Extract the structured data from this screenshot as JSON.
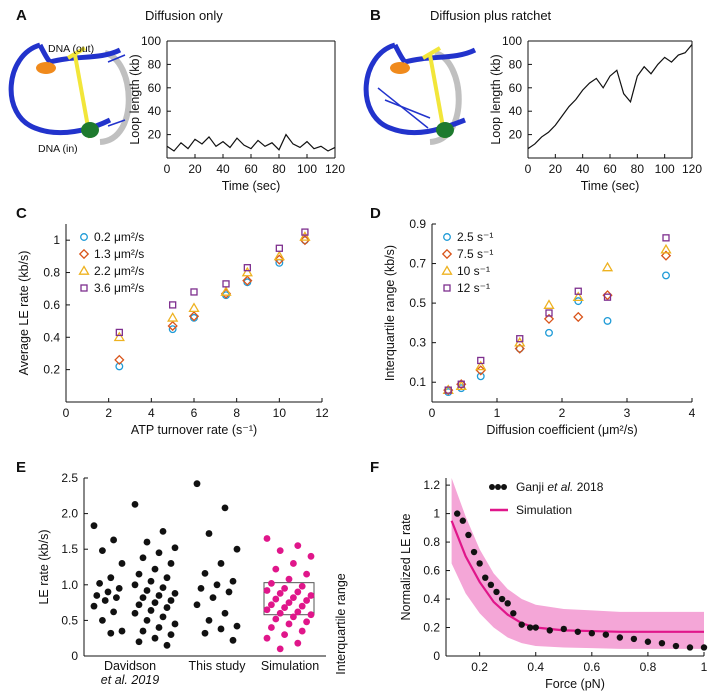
{
  "panels": {
    "A": {
      "label": "A",
      "title": "Diffusion only",
      "dna_out": "DNA (out)",
      "dna_in": "DNA (in)"
    },
    "B": {
      "label": "B",
      "title": "Diffusion plus ratchet"
    },
    "C": {
      "label": "C"
    },
    "D": {
      "label": "D"
    },
    "E": {
      "label": "E",
      "box_note": "Interquartile range"
    },
    "F": {
      "label": "F"
    }
  },
  "colors": {
    "black": "#111111",
    "blue": "#2233cc",
    "yellow": "#f2e63a",
    "orange": "#f08a1c",
    "green": "#1e7a2e",
    "gray": "#c0c0c0",
    "magenta": "#e0168a",
    "pink_band": "#f4a6d7",
    "c_blue": "#1f9bd7",
    "c_orange": "#d9541a",
    "c_yellow": "#eeb220",
    "c_purple": "#7e2f8e"
  },
  "chart_data": [
    {
      "id": "A",
      "type": "line",
      "xlabel": "Time (sec)",
      "ylabel": "Loop length (kb)",
      "xlim": [
        0,
        120
      ],
      "ylim": [
        0,
        100
      ],
      "xticks": [
        0,
        20,
        40,
        60,
        80,
        100,
        120
      ],
      "yticks": [
        20,
        40,
        60,
        80,
        100
      ],
      "x": [
        0,
        5,
        10,
        15,
        20,
        25,
        30,
        35,
        40,
        45,
        50,
        55,
        60,
        65,
        70,
        75,
        80,
        85,
        90,
        95,
        100,
        105,
        110,
        115,
        120
      ],
      "y": [
        10,
        6,
        13,
        8,
        16,
        12,
        18,
        10,
        14,
        9,
        17,
        11,
        8,
        15,
        10,
        13,
        7,
        20,
        12,
        9,
        14,
        8,
        10,
        6,
        9
      ]
    },
    {
      "id": "B",
      "type": "line",
      "xlabel": "Time (sec)",
      "ylabel": "Loop length (kb)",
      "xlim": [
        0,
        120
      ],
      "ylim": [
        0,
        100
      ],
      "xticks": [
        0,
        20,
        40,
        60,
        80,
        100,
        120
      ],
      "yticks": [
        20,
        40,
        60,
        80,
        100
      ],
      "x": [
        0,
        5,
        10,
        15,
        20,
        25,
        30,
        35,
        40,
        45,
        50,
        55,
        60,
        65,
        70,
        75,
        80,
        85,
        90,
        95,
        100,
        105,
        110,
        115,
        120
      ],
      "y": [
        8,
        12,
        18,
        22,
        28,
        36,
        44,
        50,
        58,
        64,
        68,
        60,
        70,
        75,
        55,
        48,
        70,
        78,
        72,
        80,
        86,
        82,
        88,
        90,
        97
      ]
    },
    {
      "id": "C",
      "type": "scatter",
      "xlabel": "ATP turnover rate (s⁻¹)",
      "ylabel": "Average LE rate (kb/s)",
      "xlim": [
        0,
        12
      ],
      "ylim": [
        0,
        1.1
      ],
      "xticks": [
        0,
        2,
        4,
        6,
        8,
        10,
        12
      ],
      "yticks": [
        0.2,
        0.4,
        0.6,
        0.8,
        1.0
      ],
      "x": [
        2.5,
        5,
        6,
        7.5,
        8.5,
        10,
        11.2
      ],
      "series": [
        {
          "name": "0.2 μm²/s",
          "marker": "circle",
          "color": "#1f9bd7",
          "values": [
            0.22,
            0.45,
            0.52,
            0.66,
            0.74,
            0.86,
            1.0
          ]
        },
        {
          "name": "1.3 μm²/s",
          "marker": "diamond",
          "color": "#d9541a",
          "values": [
            0.26,
            0.47,
            0.53,
            0.67,
            0.75,
            0.88,
            1.0
          ]
        },
        {
          "name": "2.2 μm²/s",
          "marker": "triangle",
          "color": "#eeb220",
          "values": [
            0.4,
            0.52,
            0.58,
            0.68,
            0.8,
            0.9,
            1.02
          ]
        },
        {
          "name": "3.6 μm²/s",
          "marker": "square",
          "color": "#7e2f8e",
          "values": [
            0.43,
            0.6,
            0.68,
            0.73,
            0.83,
            0.95,
            1.05
          ]
        }
      ]
    },
    {
      "id": "D",
      "type": "scatter",
      "xlabel": "Diffusion coefficient (μm²/s)",
      "ylabel": "Interquartile range (kb/s)",
      "xlim": [
        0,
        4
      ],
      "ylim": [
        0,
        0.9
      ],
      "xticks": [
        0,
        1,
        2,
        3,
        4
      ],
      "yticks": [
        0.1,
        0.3,
        0.5,
        0.7,
        0.9
      ],
      "x": [
        0.25,
        0.45,
        0.75,
        1.35,
        1.8,
        2.25,
        2.7,
        3.6
      ],
      "series": [
        {
          "name": "2.5 s⁻¹",
          "marker": "circle",
          "color": "#1f9bd7",
          "values": [
            0.05,
            0.07,
            0.13,
            0.27,
            0.35,
            0.51,
            0.41,
            0.64
          ]
        },
        {
          "name": "7.5 s⁻¹",
          "marker": "diamond",
          "color": "#d9541a",
          "values": [
            0.06,
            0.09,
            0.16,
            0.27,
            0.42,
            0.43,
            0.54,
            0.74
          ]
        },
        {
          "name": "10 s⁻¹",
          "marker": "triangle",
          "color": "#eeb220",
          "values": [
            0.06,
            0.08,
            0.18,
            0.3,
            0.49,
            0.53,
            0.68,
            0.77
          ]
        },
        {
          "name": "12 s⁻¹",
          "marker": "square",
          "color": "#7e2f8e",
          "values": [
            0.06,
            0.09,
            0.21,
            0.32,
            0.45,
            0.56,
            0.53,
            0.83
          ]
        }
      ]
    },
    {
      "id": "E",
      "type": "scatter",
      "ylabel": "LE rate (kb/s)",
      "ylim": [
        0,
        2.5
      ],
      "yticks": [
        0,
        0.5,
        1.0,
        1.5,
        2.0,
        2.5
      ],
      "categories": [
        "Davidson",
        "et al. 2019",
        "This study",
        "Simulation"
      ],
      "groups": [
        {
          "name": "Davidson et al. 2019 (a)",
          "color": "#111111",
          "values": [
            1.83,
            1.63,
            1.48,
            1.3,
            1.1,
            1.02,
            0.95,
            0.9,
            0.85,
            0.82,
            0.78,
            0.7,
            0.62,
            0.5,
            0.35,
            0.32
          ]
        },
        {
          "name": "Davidson et al. 2019 (b)",
          "color": "#111111",
          "values": [
            2.13,
            1.75,
            1.6,
            1.52,
            1.45,
            1.38,
            1.3,
            1.22,
            1.15,
            1.1,
            1.05,
            1.0,
            0.96,
            0.92,
            0.88,
            0.85,
            0.82,
            0.78,
            0.75,
            0.72,
            0.68,
            0.64,
            0.6,
            0.55,
            0.5,
            0.45,
            0.4,
            0.35,
            0.3,
            0.25,
            0.2,
            0.15
          ]
        },
        {
          "name": "This study",
          "color": "#111111",
          "values": [
            2.42,
            2.08,
            1.72,
            1.5,
            1.3,
            1.16,
            1.05,
            1.0,
            0.95,
            0.9,
            0.82,
            0.72,
            0.6,
            0.5,
            0.42,
            0.38,
            0.32,
            0.22
          ]
        },
        {
          "name": "Simulation",
          "color": "#e0168a",
          "iqr": [
            0.58,
            1.03
          ],
          "values": [
            1.65,
            1.55,
            1.48,
            1.4,
            1.3,
            1.22,
            1.15,
            1.08,
            1.02,
            0.98,
            0.95,
            0.92,
            0.9,
            0.88,
            0.85,
            0.82,
            0.8,
            0.78,
            0.75,
            0.72,
            0.7,
            0.68,
            0.65,
            0.62,
            0.6,
            0.58,
            0.55,
            0.52,
            0.48,
            0.45,
            0.4,
            0.35,
            0.3,
            0.25,
            0.18,
            0.1
          ]
        }
      ]
    },
    {
      "id": "F",
      "type": "line",
      "xlabel": "Force (pN)",
      "ylabel": "Normalized LE rate",
      "xlim": [
        0.08,
        1.0
      ],
      "ylim": [
        0,
        1.25
      ],
      "xticks": [
        0.2,
        0.4,
        0.6,
        0.8,
        1
      ],
      "yticks": [
        0,
        0.2,
        0.4,
        0.6,
        0.8,
        1,
        1.2
      ],
      "series": [
        {
          "name": "Ganji et al. 2018",
          "type": "scatter",
          "color": "#111111",
          "x": [
            0.12,
            0.14,
            0.16,
            0.18,
            0.2,
            0.22,
            0.24,
            0.26,
            0.28,
            0.3,
            0.32,
            0.35,
            0.38,
            0.4,
            0.45,
            0.5,
            0.55,
            0.6,
            0.65,
            0.7,
            0.75,
            0.8,
            0.85,
            0.9,
            0.95,
            1.0
          ],
          "values": [
            1.0,
            0.95,
            0.85,
            0.73,
            0.65,
            0.55,
            0.5,
            0.45,
            0.4,
            0.37,
            0.3,
            0.22,
            0.2,
            0.2,
            0.18,
            0.19,
            0.17,
            0.16,
            0.15,
            0.13,
            0.12,
            0.1,
            0.09,
            0.07,
            0.06,
            0.06
          ]
        },
        {
          "name": "Simulation",
          "type": "line",
          "color": "#e0168a",
          "x": [
            0.1,
            0.15,
            0.2,
            0.25,
            0.3,
            0.35,
            0.4,
            0.5,
            0.6,
            0.7,
            0.8,
            0.9,
            1.0
          ],
          "values": [
            0.95,
            0.7,
            0.52,
            0.38,
            0.29,
            0.23,
            0.2,
            0.18,
            0.175,
            0.17,
            0.17,
            0.17,
            0.17
          ],
          "band_upper": [
            1.25,
            0.98,
            0.75,
            0.58,
            0.47,
            0.4,
            0.36,
            0.33,
            0.32,
            0.31,
            0.31,
            0.31,
            0.31
          ],
          "band_lower": [
            0.65,
            0.44,
            0.3,
            0.2,
            0.13,
            0.09,
            0.07,
            0.06,
            0.055,
            0.05,
            0.05,
            0.05,
            0.05
          ]
        }
      ],
      "legend": {
        "ganji_prefix": "Ganji ",
        "ganji_italic": "et al.",
        "ganji_suffix": " 2018",
        "sim": "Simulation"
      }
    }
  ]
}
